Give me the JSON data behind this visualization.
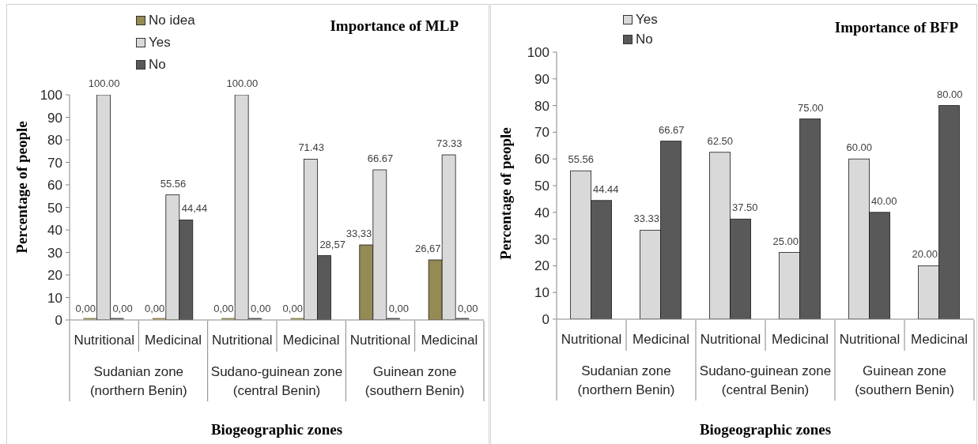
{
  "chart_data": [
    {
      "type": "bar",
      "title": "Importance of MLP",
      "xlabel": "Biogeographic zones",
      "ylabel": "Percentage of people",
      "categories": [
        "Nutritional",
        "Medicinal",
        "Nutritional",
        "Medicinal",
        "Nutritional",
        "Medicinal"
      ],
      "annotations": [
        "Sudanian zone\n(northern Benin)",
        "Sudano-guinean zone\n(central Benin)",
        "Guinean zone\n(southern Benin)"
      ],
      "series": [
        {
          "name": "No idea",
          "color": "#948a54",
          "values": [
            0,
            0,
            0,
            0,
            33.33,
            26.67
          ],
          "value_labels": [
            "0,00",
            "0,00",
            "0,00",
            "0,00",
            "33,33",
            "26,67"
          ]
        },
        {
          "name": "Yes",
          "color": "#d9d9d9",
          "values": [
            100,
            55.56,
            100,
            71.43,
            66.67,
            73.33
          ],
          "value_labels": [
            "100.00",
            "55.56",
            "100.00",
            "71.43",
            "66.67",
            "73.33"
          ]
        },
        {
          "name": "No",
          "color": "#595959",
          "values": [
            0,
            44.44,
            0,
            28.57,
            0,
            0
          ],
          "value_labels": [
            "0,00",
            "44,44",
            "0,00",
            "28,57",
            "0,00",
            "0,00"
          ]
        }
      ],
      "ylim": [
        0,
        100
      ],
      "yticks": [
        0,
        10,
        20,
        30,
        40,
        50,
        60,
        70,
        80,
        90,
        100
      ],
      "legend": "top left"
    },
    {
      "type": "bar",
      "title": "Importance of BFP",
      "xlabel": "Biogeographic zones",
      "ylabel": "Percentage of people",
      "categories": [
        "Nutritional",
        "Medicinal",
        "Nutritional",
        "Medicinal",
        "Nutritional",
        "Medicinal"
      ],
      "annotations": [
        "Sudanian zone\n(northern Benin)",
        "Sudano-guinean zone\n(central Benin)",
        "Guinean zone\n(southern Benin)"
      ],
      "series": [
        {
          "name": "Yes",
          "color": "#d9d9d9",
          "values": [
            55.56,
            33.33,
            62.5,
            25,
            60,
            20
          ],
          "value_labels": [
            "55.56",
            "33.33",
            "62.50",
            "25.00",
            "60.00",
            "20.00"
          ]
        },
        {
          "name": "No",
          "color": "#595959",
          "values": [
            44.44,
            66.67,
            37.5,
            75,
            40,
            80
          ],
          "value_labels": [
            "44.44",
            "66.67",
            "37.50",
            "75.00",
            "40.00",
            "80.00"
          ]
        }
      ],
      "ylim": [
        0,
        100
      ],
      "yticks": [
        0,
        10,
        20,
        30,
        40,
        50,
        60,
        70,
        80,
        90,
        100
      ],
      "legend": "top left"
    }
  ]
}
